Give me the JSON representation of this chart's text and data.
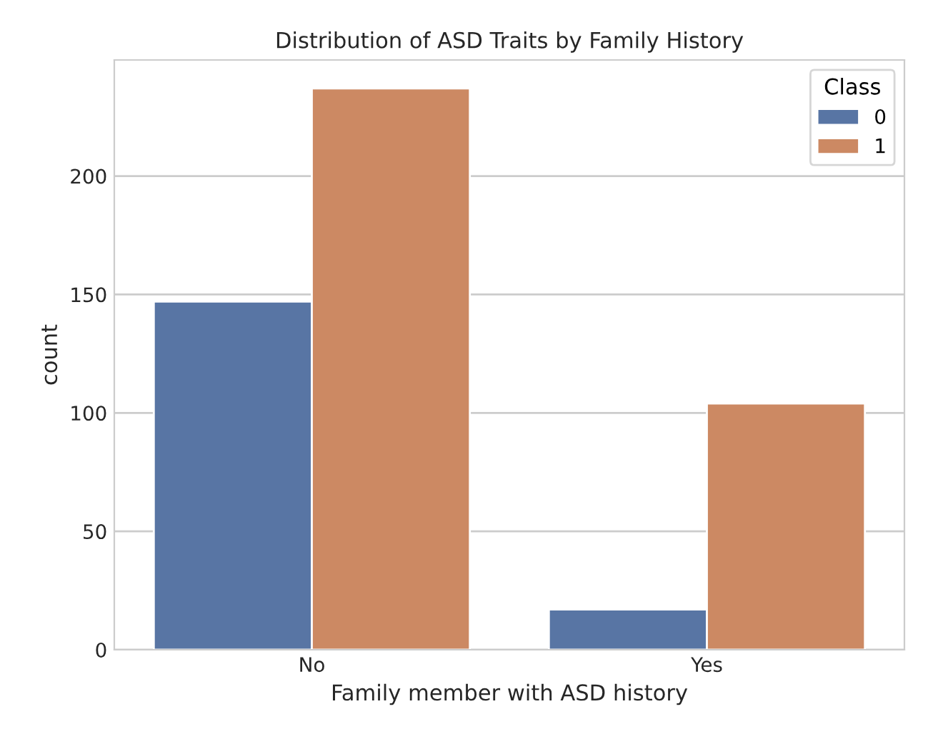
{
  "chart_data": {
    "type": "bar",
    "title": "Distribution of ASD Traits by Family History",
    "xlabel": "Family member with ASD history",
    "ylabel": "count",
    "legend_title": "Class",
    "categories": [
      "No",
      "Yes"
    ],
    "series": [
      {
        "name": "0",
        "color": "#5875a4",
        "values": [
          147,
          17
        ]
      },
      {
        "name": "1",
        "color": "#cc8963",
        "values": [
          237,
          104
        ]
      }
    ],
    "ylim": [
      0,
      249
    ],
    "yticks": [
      0,
      50,
      100,
      150,
      200
    ],
    "grid": "y",
    "legend": "top right"
  }
}
